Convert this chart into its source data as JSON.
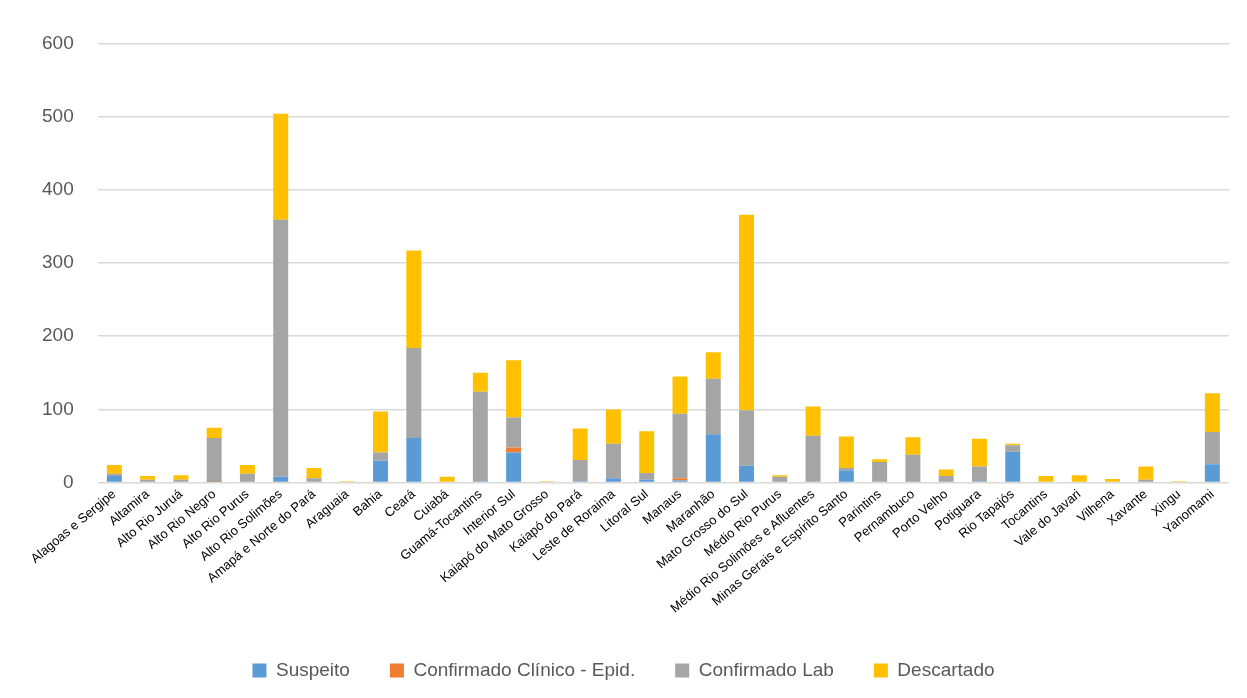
{
  "chart_data": {
    "type": "bar",
    "stacked": true,
    "categories": [
      "Alagoas e Sergipe",
      "Altamira",
      "Alto Rio Juruá",
      "Alto Rio Negro",
      "Alto Rio Purus",
      "Alto Rio Solimões",
      "Amapá e Norte do Pará",
      "Araguaia",
      "Bahia",
      "Ceará",
      "Cuiabá",
      "Guamá-Tocantins",
      "Interior Sul",
      "Kaiapó do Mato Grosso",
      "Kaiapó do Pará",
      "Leste de Roraima",
      "Litoral Sul",
      "Manaus",
      "Maranhão",
      "Mato Grosso do Sul",
      "Médio Rio Purus",
      "Médio Rio Solimões e Afluentes",
      "Minas Gerais e Espírito Santo",
      "Parintins",
      "Pernambuco",
      "Porto Velho",
      "Potiguara",
      "Rio Tapajós",
      "Tocantins",
      "Vale do Javari",
      "Vilhena",
      "Xavante",
      "Xingu",
      "Yanomami"
    ],
    "series": [
      {
        "name": "Suspeito",
        "color": "#5b9bd5",
        "values": [
          9,
          0,
          0,
          0,
          0,
          8,
          0,
          0,
          30,
          61,
          0,
          2,
          41,
          0,
          2,
          6,
          4,
          3,
          66,
          23,
          0,
          0,
          17,
          0,
          0,
          0,
          2,
          42,
          0,
          0,
          0,
          0,
          0,
          25
        ]
      },
      {
        "name": "Confirmado Clínico - Epid.",
        "color": "#ed7d31",
        "values": [
          0,
          0,
          0,
          1,
          0,
          0,
          0,
          0,
          0,
          0,
          0,
          0,
          7,
          0,
          0,
          0,
          0,
          3,
          0,
          0,
          0,
          0,
          0,
          0,
          0,
          0,
          0,
          0,
          0,
          0,
          0,
          0,
          0,
          0
        ]
      },
      {
        "name": "Confirmado Lab",
        "color": "#a5a5a5",
        "values": [
          3,
          4,
          4,
          60,
          12,
          351,
          6,
          0,
          11,
          123,
          0,
          122,
          41,
          0,
          29,
          47,
          9,
          88,
          76,
          76,
          8,
          64,
          3,
          28,
          38,
          9,
          20,
          9,
          0,
          0,
          0,
          4,
          0,
          44
        ]
      },
      {
        "name": "Descartado",
        "color": "#ffc000",
        "values": [
          12,
          5,
          6,
          14,
          12,
          145,
          14,
          2,
          56,
          133,
          8,
          26,
          78,
          2,
          43,
          47,
          57,
          51,
          36,
          267,
          2,
          40,
          43,
          4,
          24,
          9,
          38,
          2,
          9,
          10,
          5,
          18,
          2,
          53
        ]
      }
    ],
    "ylim": [
      0,
      600
    ],
    "yticks": [
      0,
      100,
      200,
      300,
      400,
      500,
      600
    ],
    "grid": "y",
    "legend": "bottom"
  }
}
